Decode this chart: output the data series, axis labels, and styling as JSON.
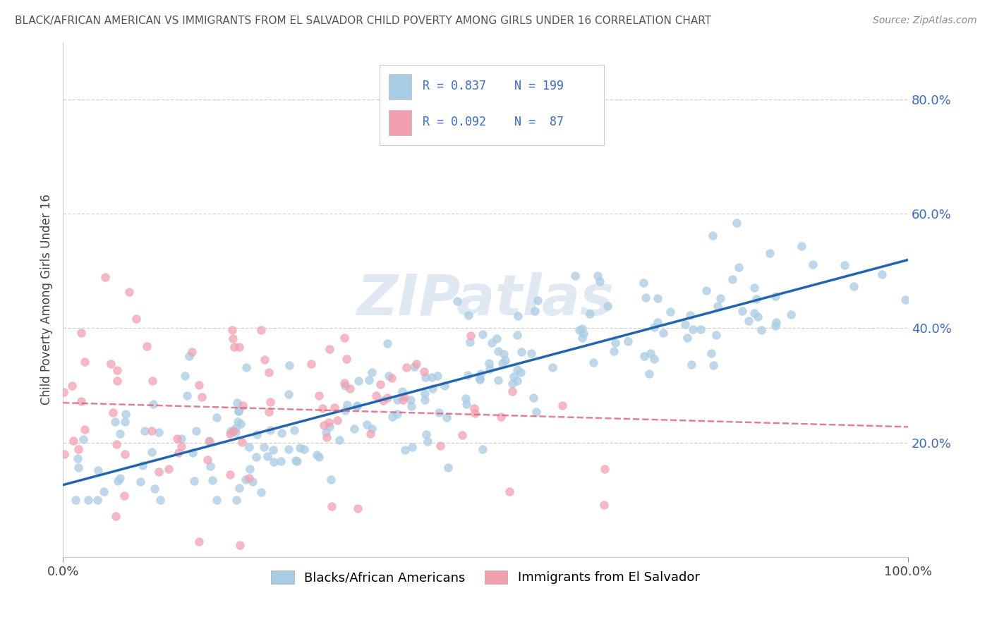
{
  "title": "BLACK/AFRICAN AMERICAN VS IMMIGRANTS FROM EL SALVADOR CHILD POVERTY AMONG GIRLS UNDER 16 CORRELATION CHART",
  "source": "Source: ZipAtlas.com",
  "ylabel": "Child Poverty Among Girls Under 16",
  "xlim": [
    0.0,
    1.0
  ],
  "ylim": [
    0.0,
    0.9
  ],
  "xtick_positions": [
    0.0,
    1.0
  ],
  "xtick_labels": [
    "0.0%",
    "100.0%"
  ],
  "ytick_positions": [
    0.2,
    0.4,
    0.6,
    0.8
  ],
  "ytick_labels": [
    "20.0%",
    "40.0%",
    "60.0%",
    "80.0%"
  ],
  "watermark": "ZIPatlas",
  "legend_r1": "R = 0.837",
  "legend_n1": "N = 199",
  "legend_r2": "R = 0.092",
  "legend_n2": "N =  87",
  "blue_color": "#a8cce4",
  "pink_color": "#f2a0b0",
  "blue_line_color": "#2166ac",
  "pink_line_color": "#d9607a",
  "background_color": "#ffffff",
  "grid_color": "#cccccc",
  "title_color": "#555555",
  "legend_text_color": "#3a6bc9",
  "tick_label_color": "#3a6bc9",
  "n_blue": 199,
  "n_pink": 87,
  "R_blue": 0.837,
  "R_pink": 0.092,
  "legend_label1": "Blacks/African Americans",
  "legend_label2": "Immigrants from El Salvador"
}
